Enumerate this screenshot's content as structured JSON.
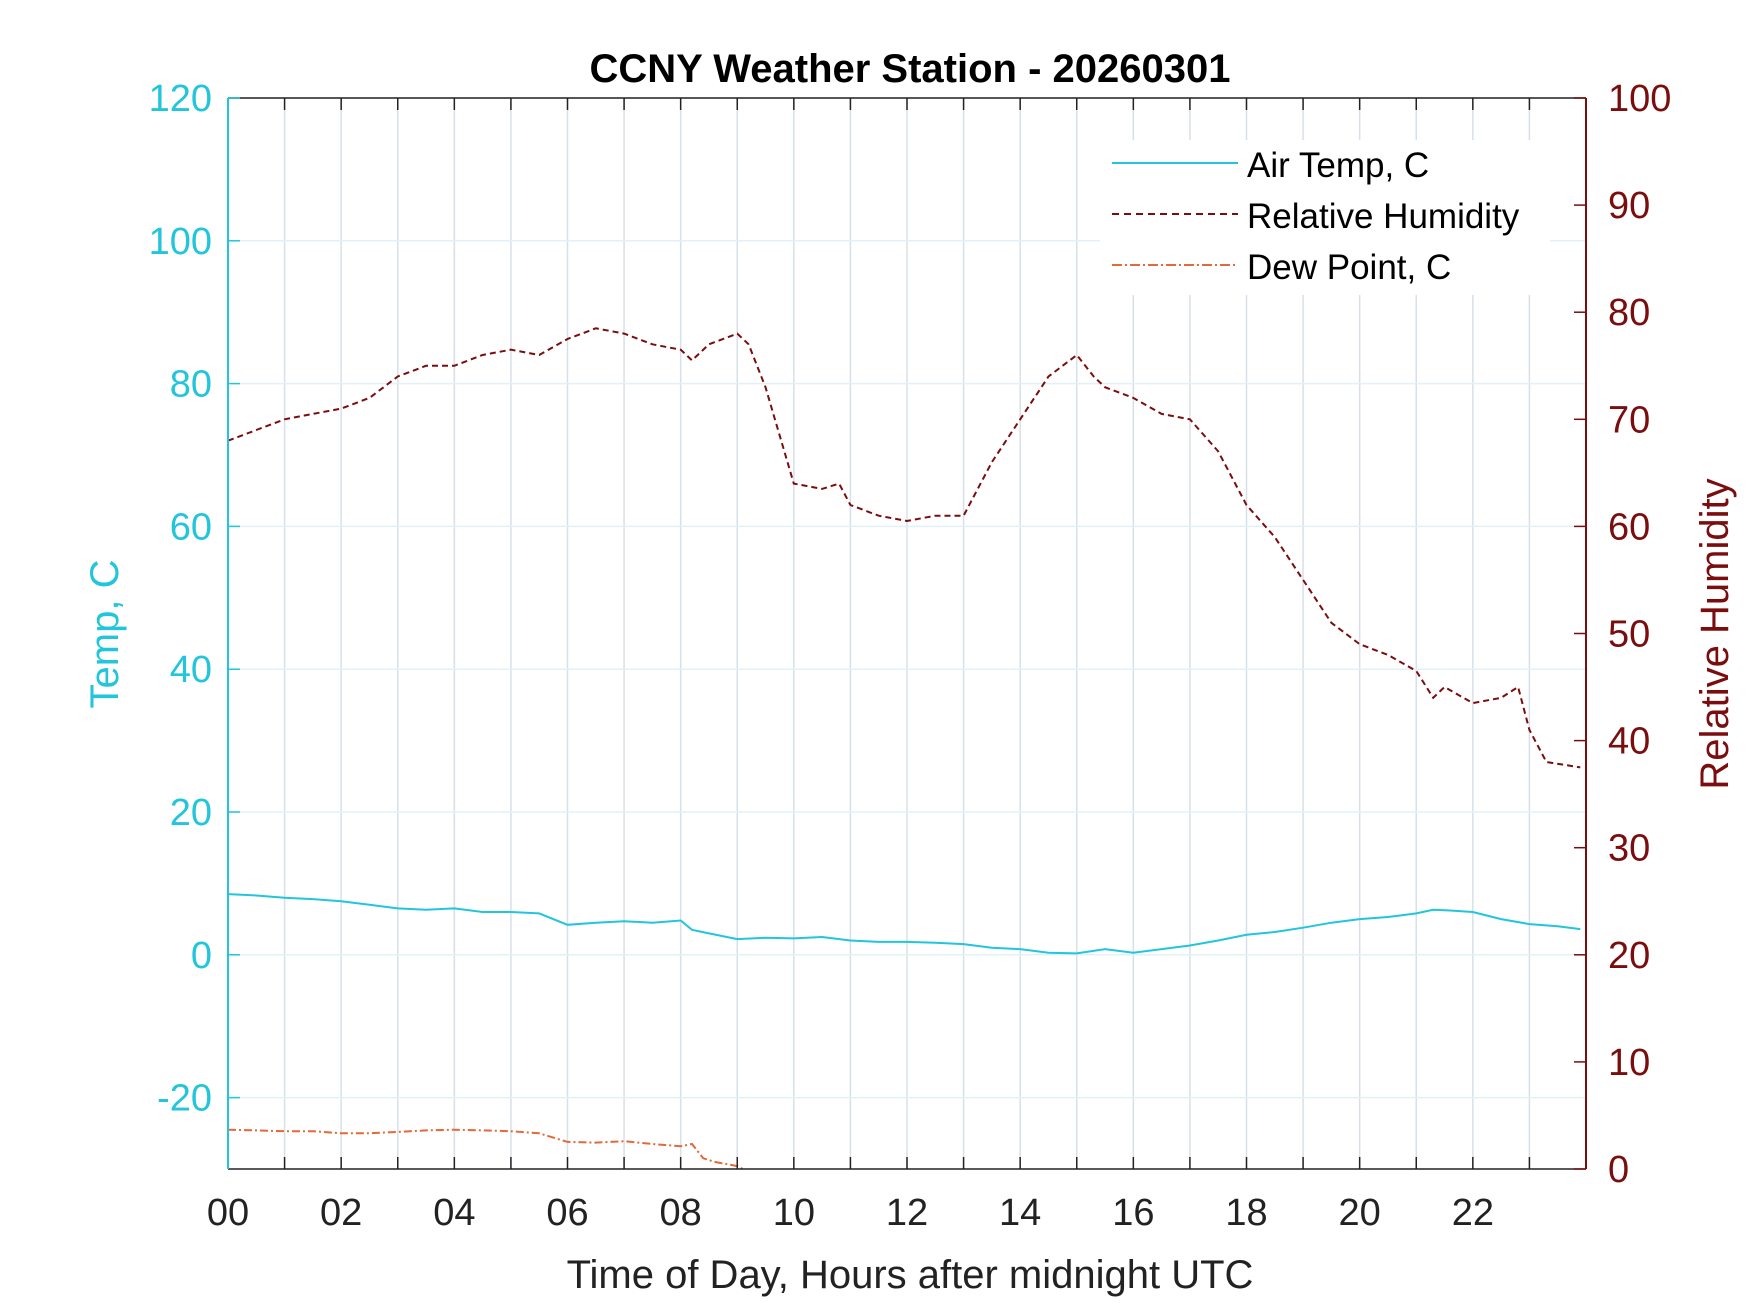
{
  "chart_data": {
    "type": "line",
    "title": "CCNY Weather Station - 20260301",
    "xlabel": "Time of Day, Hours after midnight UTC",
    "ylabel_left": "Temp, C",
    "ylabel_right": "Relative Humidity",
    "xlim": [
      0,
      24
    ],
    "ylim_left": [
      -30,
      120
    ],
    "ylim_right": [
      0,
      100
    ],
    "x_ticks": [
      0,
      2,
      4,
      6,
      8,
      10,
      12,
      14,
      16,
      18,
      20,
      22
    ],
    "x_tick_labels": [
      "00",
      "02",
      "04",
      "06",
      "08",
      "10",
      "12",
      "14",
      "16",
      "18",
      "20",
      "22"
    ],
    "y_left_ticks": [
      -20,
      0,
      20,
      40,
      60,
      80,
      100,
      120
    ],
    "y_left_tick_labels": [
      "-20",
      "0",
      "20",
      "40",
      "60",
      "80",
      "100",
      "120"
    ],
    "y_right_ticks": [
      0,
      10,
      20,
      30,
      40,
      50,
      60,
      70,
      80,
      90,
      100
    ],
    "y_right_tick_labels": [
      "0",
      "10",
      "20",
      "30",
      "40",
      "50",
      "60",
      "70",
      "80",
      "90",
      "100"
    ],
    "grid": true,
    "legend_position": "top-right",
    "colors": {
      "air_temp": "#22c5db",
      "humidity": "#7a0d0d",
      "dew_point": "#e2693a",
      "left_axis": "#22c5db",
      "right_axis": "#7a0d0d",
      "grid": "#d7e0e8"
    },
    "series": [
      {
        "name": "Air Temp, C",
        "axis": "left",
        "style": "solid",
        "x": [
          0,
          0.5,
          1,
          1.5,
          2,
          2.5,
          3,
          3.5,
          4,
          4.5,
          5,
          5.5,
          6,
          6.5,
          7,
          7.5,
          8,
          8.2,
          8.5,
          9,
          9.5,
          10,
          10.5,
          11,
          11.5,
          12,
          12.5,
          13,
          13.5,
          14,
          14.5,
          15,
          15.5,
          16,
          16.5,
          17,
          17.5,
          18,
          18.5,
          19,
          19.5,
          20,
          20.5,
          21,
          21.3,
          21.6,
          22,
          22.5,
          23,
          23.5,
          23.9
        ],
        "y": [
          8.5,
          8.3,
          8.0,
          7.8,
          7.5,
          7.0,
          6.5,
          6.3,
          6.5,
          6.0,
          6.0,
          5.8,
          4.2,
          4.5,
          4.7,
          4.5,
          4.8,
          3.5,
          3.0,
          2.2,
          2.4,
          2.3,
          2.5,
          2.0,
          1.8,
          1.8,
          1.7,
          1.5,
          1.0,
          0.8,
          0.3,
          0.2,
          0.8,
          0.3,
          0.8,
          1.3,
          2.0,
          2.8,
          3.2,
          3.8,
          4.5,
          5.0,
          5.3,
          5.8,
          6.3,
          6.2,
          6.0,
          5.0,
          4.3,
          4.0,
          3.6
        ]
      },
      {
        "name": "Relative Humidity",
        "axis": "right",
        "style": "dashed",
        "x": [
          0,
          0.5,
          1,
          1.5,
          2,
          2.5,
          3,
          3.5,
          4,
          4.5,
          5,
          5.5,
          6,
          6.5,
          7,
          7.5,
          8,
          8.2,
          8.5,
          9,
          9.2,
          9.5,
          10,
          10.5,
          10.8,
          11,
          11.5,
          12,
          12.5,
          13,
          13.5,
          14,
          14.5,
          15,
          15.3,
          15.5,
          16,
          16.5,
          17,
          17.5,
          18,
          18.5,
          19,
          19.5,
          20,
          20.5,
          21,
          21.3,
          21.5,
          22,
          22.5,
          22.8,
          23,
          23.3,
          23.9
        ],
        "y": [
          68,
          69,
          70,
          70.5,
          71,
          72,
          74,
          75,
          75,
          76,
          76.5,
          76,
          77.5,
          78.5,
          78,
          77,
          76.5,
          75.5,
          77,
          78,
          77,
          73,
          64,
          63.5,
          64,
          62,
          61,
          60.5,
          61,
          61,
          66,
          70,
          74,
          76,
          74,
          73,
          72,
          70.5,
          70,
          67,
          62,
          59,
          55,
          51,
          49,
          48,
          46.5,
          44,
          45,
          43.5,
          44,
          45,
          41,
          38,
          37.5
        ]
      },
      {
        "name": "Dew Point, C",
        "axis": "left",
        "style": "dash-dot",
        "x": [
          0,
          0.5,
          1,
          1.5,
          2,
          2.5,
          3,
          3.5,
          4,
          4.5,
          5,
          5.5,
          6,
          6.5,
          7,
          7.5,
          8,
          8.2,
          8.4,
          8.6,
          9,
          9.1
        ],
        "y": [
          -24.5,
          -24.6,
          -24.7,
          -24.7,
          -25.0,
          -25.0,
          -24.8,
          -24.6,
          -24.5,
          -24.6,
          -24.7,
          -25.0,
          -26.2,
          -26.3,
          -26.1,
          -26.5,
          -26.8,
          -26.5,
          -28.5,
          -29.0,
          -29.6,
          -30.0
        ]
      }
    ]
  }
}
